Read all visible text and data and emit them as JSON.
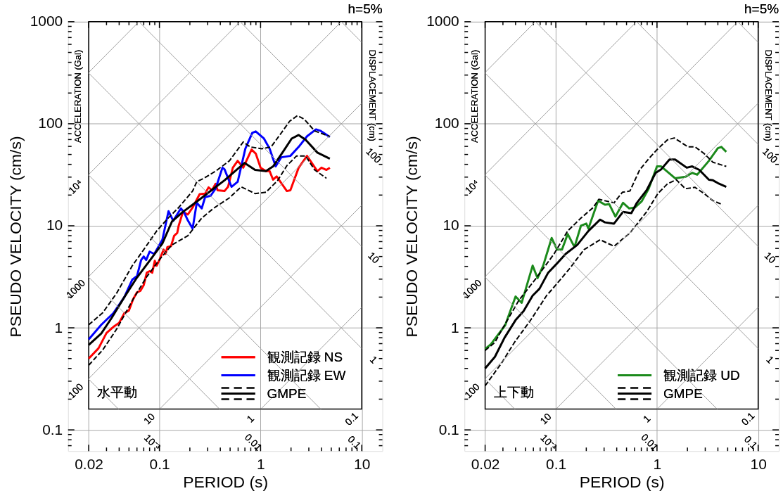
{
  "chart_data": [
    {
      "type": "line",
      "xlabel": "PERIOD (s)",
      "ylabel": "PSEUDO VELOCITY (cm/s)",
      "log": "xy",
      "grid": true,
      "legend": "bottom right",
      "xlim": [
        0.0125,
        16
      ],
      "ylim": [
        0.062,
        1000
      ],
      "xticks": [
        0.02,
        {
          "value": 0.03,
          "label": null
        },
        {
          "value": 0.04,
          "label": null
        },
        {
          "value": 0.05,
          "label": null
        },
        {
          "value": 0.06,
          "label": null
        },
        {
          "value": 0.07,
          "label": null
        },
        {
          "value": 0.08,
          "label": null
        },
        {
          "value": 0.09,
          "label": null
        },
        0.1,
        {
          "value": 0.2,
          "label": null
        },
        {
          "value": 0.3,
          "label": null
        },
        {
          "value": 0.4,
          "label": null
        },
        {
          "value": 0.5,
          "label": null
        },
        {
          "value": 0.6,
          "label": null
        },
        {
          "value": 0.7,
          "label": null
        },
        {
          "value": 0.8,
          "label": null
        },
        {
          "value": 0.9,
          "label": null
        },
        1,
        {
          "value": 2,
          "label": null
        },
        {
          "value": 3,
          "label": null
        },
        {
          "value": 4,
          "label": null
        },
        {
          "value": 5,
          "label": null
        },
        {
          "value": 6,
          "label": null
        },
        {
          "value": 7,
          "label": null
        },
        {
          "value": 8,
          "label": null
        },
        {
          "value": 9,
          "label": null
        },
        10
      ],
      "yticks": [
        {
          "value": 0.07,
          "label": null
        },
        {
          "value": 0.08,
          "label": null
        },
        {
          "value": 0.09,
          "label": null
        },
        0.1,
        {
          "value": 0.2,
          "label": null
        },
        {
          "value": 0.3,
          "label": null
        },
        {
          "value": 0.4,
          "label": null
        },
        {
          "value": 0.5,
          "label": null
        },
        {
          "value": 0.6,
          "label": null
        },
        {
          "value": 0.7,
          "label": null
        },
        {
          "value": 0.8,
          "label": null
        },
        {
          "value": 0.9,
          "label": null
        },
        1,
        {
          "value": 2,
          "label": null
        },
        {
          "value": 3,
          "label": null
        },
        {
          "value": 4,
          "label": null
        },
        {
          "value": 5,
          "label": null
        },
        {
          "value": 6,
          "label": null
        },
        {
          "value": 7,
          "label": null
        },
        {
          "value": 8,
          "label": null
        },
        {
          "value": 9,
          "label": null
        },
        10,
        {
          "value": 20,
          "label": null
        },
        {
          "value": 30,
          "label": null
        },
        {
          "value": 40,
          "label": null
        },
        {
          "value": 50,
          "label": null
        },
        {
          "value": 60,
          "label": null
        },
        {
          "value": 70,
          "label": null
        },
        {
          "value": 80,
          "label": null
        },
        {
          "value": 90,
          "label": null
        },
        100,
        {
          "value": 200,
          "label": null
        },
        {
          "value": 300,
          "label": null
        },
        {
          "value": 400,
          "label": null
        },
        {
          "value": 500,
          "label": null
        },
        {
          "value": 600,
          "label": null
        },
        {
          "value": 700,
          "label": null
        },
        {
          "value": 800,
          "label": null
        },
        {
          "value": 900,
          "label": null
        },
        1000
      ],
      "annotations": [
        "h=5%",
        "ACCELERATION (Gal)",
        "DISPLACEMENT (cm)",
        "水平動",
        "10⁴",
        "1000",
        "100",
        "10",
        "1",
        "0.1",
        "100",
        "10",
        "1",
        "10⁻³",
        "0.01",
        "0.1"
      ],
      "series": [
        {
          "name": "観測記録 NS",
          "color": "#ff0000",
          "x": [
            0.02,
            0.025,
            0.03,
            0.035,
            0.04,
            0.045,
            0.05,
            0.055,
            0.06,
            0.065,
            0.07,
            0.075,
            0.08,
            0.085,
            0.09,
            0.094,
            0.1,
            0.11,
            0.115,
            0.12,
            0.13,
            0.14,
            0.15,
            0.155,
            0.171,
            0.191,
            0.213,
            0.25,
            0.283,
            0.306,
            0.331,
            0.359,
            0.376,
            0.44,
            0.477,
            0.532,
            0.594,
            0.674,
            0.815,
            0.896,
            1.0,
            1.13,
            1.23,
            1.33,
            1.44,
            1.82,
            1.97,
            2.38,
            2.88,
            3.64,
            4.0,
            4.48,
            4.84
          ],
          "values": [
            0.5,
            0.63,
            0.89,
            1.02,
            1.12,
            1.39,
            1.48,
            1.91,
            2.23,
            2.31,
            2.62,
            3.47,
            3.59,
            3.47,
            4.54,
            4.07,
            4.62,
            5.84,
            5.3,
            6.2,
            6.3,
            8.0,
            8.5,
            10.0,
            13.7,
            12.9,
            15.1,
            20.4,
            20.7,
            23.8,
            22.3,
            25.8,
            22.3,
            21.9,
            24.1,
            37.1,
            43.3,
            37.1,
            55.8,
            51,
            37.1,
            34.3,
            34.3,
            28.3,
            30.5,
            21.9,
            22.3,
            37.1,
            48.4,
            34.3,
            37.1,
            35.3,
            37.1
          ]
        },
        {
          "name": "観測記録 EW",
          "color": "#0000ff",
          "x": [
            0.02,
            0.0266,
            0.035,
            0.045,
            0.054,
            0.06,
            0.066,
            0.07,
            0.074,
            0.08,
            0.089,
            0.107,
            0.123,
            0.137,
            0.163,
            0.177,
            0.191,
            0.213,
            0.234,
            0.262,
            0.283,
            0.321,
            0.359,
            0.42,
            0.44,
            0.516,
            0.594,
            0.707,
            0.828,
            0.896,
            1.08,
            1.23,
            1.41,
            1.6,
            1.97,
            2.38,
            2.88,
            3.53,
            3.94,
            4.84
          ],
          "values": [
            0.77,
            1.07,
            1.39,
            2.0,
            2.97,
            3.21,
            4.62,
            5.0,
            4.62,
            5.58,
            5.3,
            7.3,
            13.9,
            11.2,
            14.8,
            13.3,
            11.3,
            9.4,
            16.8,
            14.8,
            19.1,
            19.7,
            23.1,
            37.1,
            35.8,
            24.1,
            27,
            56.9,
            81.4,
            84.2,
            71.6,
            56.9,
            38.2,
            46.9,
            48.4,
            59.3,
            75.3,
            88.1,
            85,
            74.2
          ]
        },
        {
          "name": "GMPE",
          "color": "#000000",
          "x": [
            0.02,
            0.0266,
            0.0337,
            0.045,
            0.06,
            0.083,
            0.107,
            0.133,
            0.171,
            0.213,
            0.262,
            0.342,
            0.44,
            0.577,
            0.696,
            0.882,
            1.13,
            1.33,
            1.66,
            2.03,
            2.38,
            2.79,
            3.64,
            4.84
          ],
          "values": [
            0.68,
            0.88,
            1.25,
            2.0,
            3.11,
            4.77,
            6.7,
            11,
            13.7,
            16.1,
            18.8,
            23.1,
            27.9,
            35.3,
            41.3,
            35.3,
            34.3,
            38.2,
            52.8,
            71.6,
            77.6,
            69.6,
            52.2,
            45.5
          ]
        },
        {
          "color": "#000000",
          "line_style": "dashed",
          "x": [
            0.02,
            0.0276,
            0.0376,
            0.054,
            0.07,
            0.094,
            0.12,
            0.155,
            0.213,
            0.234,
            0.275,
            0.359,
            0.492,
            0.674,
            0.79,
            1.03,
            1.27,
            1.55,
            1.94,
            2.31,
            2.7,
            3.42,
            4.84
          ],
          "values": [
            1.07,
            1.41,
            2.17,
            4.07,
            5.84,
            8.9,
            11.7,
            15.1,
            21.9,
            27,
            29.2,
            34.3,
            43.3,
            66.3,
            59.3,
            56.9,
            59.3,
            77.6,
            106,
            120,
            111,
            85,
            75
          ]
        },
        {
          "color": "#000000",
          "line_style": "dashed",
          "x": [
            0.02,
            0.0276,
            0.038,
            0.054,
            0.074,
            0.102,
            0.133,
            0.191,
            0.262,
            0.342,
            0.492,
            0.643,
            0.882,
            1.13,
            1.48,
            1.82,
            2.27,
            2.79,
            3.42,
            4.48
          ],
          "values": [
            0.43,
            0.61,
            0.98,
            1.85,
            3.11,
            4.77,
            6.5,
            8.0,
            11.9,
            14.8,
            18.8,
            24.1,
            20.7,
            21.3,
            27.9,
            38.9,
            48.4,
            48.4,
            35.3,
            29.2
          ]
        },
        {
          "color": "#a0a0a0",
          "x": [
            1.005,
            10
          ],
          "values": [
            0.16,
            1.59
          ]
        },
        {
          "color": "#a0a0a0",
          "x": [
            0.1005,
            10
          ],
          "values": [
            0.16,
            15.9
          ]
        },
        {
          "color": "#a0a0a0",
          "x": [
            0.02,
            10
          ],
          "values": [
            0.318,
            159
          ]
        },
        {
          "color": "#a0a0a0",
          "x": [
            0.02,
            6.28
          ],
          "values": [
            3.18,
            1000
          ]
        },
        {
          "color": "#a0a0a0",
          "x": [
            0.02,
            0.628
          ],
          "values": [
            31.8,
            1000
          ]
        },
        {
          "color": "#a0a0a0",
          "x": [
            0.02,
            0.0628
          ],
          "values": [
            318,
            1000
          ]
        },
        {
          "color": "#a0a0a0",
          "x": [
            0.02,
            0.0393
          ],
          "values": [
            0.314,
            0.16
          ]
        },
        {
          "color": "#a0a0a0",
          "x": [
            0.02,
            0.393
          ],
          "values": [
            3.14,
            0.16
          ]
        },
        {
          "color": "#a0a0a0",
          "x": [
            0.02,
            3.93
          ],
          "values": [
            31.4,
            0.16
          ]
        },
        {
          "color": "#a0a0a0",
          "x": [
            0.02,
            10
          ],
          "values": [
            314,
            0.628
          ]
        },
        {
          "color": "#a0a0a0",
          "x": [
            0.0628,
            10
          ],
          "values": [
            1000,
            6.28
          ]
        },
        {
          "color": "#a0a0a0",
          "x": [
            0.628,
            10
          ],
          "values": [
            1000,
            62.8
          ]
        },
        {
          "color": "#a0a0a0",
          "x": [
            6.28,
            10
          ],
          "values": [
            1000,
            628
          ]
        }
      ]
    },
    {
      "type": "line",
      "xlabel": "PERIOD (s)",
      "ylabel": "PSEUDO VELOCITY (cm/s)",
      "log": "xy",
      "grid": true,
      "legend": "bottom right",
      "xlim": [
        0.0125,
        16
      ],
      "ylim": [
        0.062,
        1000
      ],
      "xticks": [
        0.02,
        {
          "value": 0.03,
          "label": null
        },
        {
          "value": 0.04,
          "label": null
        },
        {
          "value": 0.05,
          "label": null
        },
        {
          "value": 0.06,
          "label": null
        },
        {
          "value": 0.07,
          "label": null
        },
        {
          "value": 0.08,
          "label": null
        },
        {
          "value": 0.09,
          "label": null
        },
        0.1,
        {
          "value": 0.2,
          "label": null
        },
        {
          "value": 0.3,
          "label": null
        },
        {
          "value": 0.4,
          "label": null
        },
        {
          "value": 0.5,
          "label": null
        },
        {
          "value": 0.6,
          "label": null
        },
        {
          "value": 0.7,
          "label": null
        },
        {
          "value": 0.8,
          "label": null
        },
        {
          "value": 0.9,
          "label": null
        },
        1,
        {
          "value": 2,
          "label": null
        },
        {
          "value": 3,
          "label": null
        },
        {
          "value": 4,
          "label": null
        },
        {
          "value": 5,
          "label": null
        },
        {
          "value": 6,
          "label": null
        },
        {
          "value": 7,
          "label": null
        },
        {
          "value": 8,
          "label": null
        },
        {
          "value": 9,
          "label": null
        },
        10
      ],
      "yticks": [
        {
          "value": 0.07,
          "label": null
        },
        {
          "value": 0.08,
          "label": null
        },
        {
          "value": 0.09,
          "label": null
        },
        0.1,
        {
          "value": 0.2,
          "label": null
        },
        {
          "value": 0.3,
          "label": null
        },
        {
          "value": 0.4,
          "label": null
        },
        {
          "value": 0.5,
          "label": null
        },
        {
          "value": 0.6,
          "label": null
        },
        {
          "value": 0.7,
          "label": null
        },
        {
          "value": 0.8,
          "label": null
        },
        {
          "value": 0.9,
          "label": null
        },
        1,
        {
          "value": 2,
          "label": null
        },
        {
          "value": 3,
          "label": null
        },
        {
          "value": 4,
          "label": null
        },
        {
          "value": 5,
          "label": null
        },
        {
          "value": 6,
          "label": null
        },
        {
          "value": 7,
          "label": null
        },
        {
          "value": 8,
          "label": null
        },
        {
          "value": 9,
          "label": null
        },
        10,
        {
          "value": 20,
          "label": null
        },
        {
          "value": 30,
          "label": null
        },
        {
          "value": 40,
          "label": null
        },
        {
          "value": 50,
          "label": null
        },
        {
          "value": 60,
          "label": null
        },
        {
          "value": 70,
          "label": null
        },
        {
          "value": 80,
          "label": null
        },
        {
          "value": 90,
          "label": null
        },
        100,
        {
          "value": 200,
          "label": null
        },
        {
          "value": 300,
          "label": null
        },
        {
          "value": 400,
          "label": null
        },
        {
          "value": 500,
          "label": null
        },
        {
          "value": 600,
          "label": null
        },
        {
          "value": 700,
          "label": null
        },
        {
          "value": 800,
          "label": null
        },
        {
          "value": 900,
          "label": null
        },
        1000
      ],
      "annotations": [
        "h=5%",
        "ACCELERATION (Gal)",
        "DISPLACEMENT (cm)",
        "上下動",
        "10⁴",
        "1000",
        "100",
        "10",
        "1",
        "0.1",
        "100",
        "10",
        "1",
        "10⁻³",
        "0.01",
        "0.1"
      ],
      "series": [
        {
          "name": "観測記録 UD",
          "color": "#1b8a1b",
          "x": [
            0.02,
            0.0228,
            0.0265,
            0.0316,
            0.035,
            0.04,
            0.046,
            0.059,
            0.066,
            0.075,
            0.091,
            0.103,
            0.115,
            0.131,
            0.153,
            0.177,
            0.2,
            0.21,
            0.262,
            0.306,
            0.337,
            0.388,
            0.462,
            0.532,
            0.604,
            0.707,
            0.828,
            1.0,
            1.1,
            1.51,
            1.91,
            2.23,
            2.5,
            3.26,
            4.0,
            4.33,
            4.84
          ],
          "values": [
            0.62,
            0.69,
            0.84,
            1.06,
            1.41,
            2.03,
            1.76,
            4.07,
            3.07,
            4.07,
            7.6,
            5.84,
            5.84,
            8.3,
            6.2,
            10.0,
            10.5,
            9.4,
            17.6,
            16.1,
            16.3,
            12.3,
            16.8,
            14.8,
            15.1,
            17.4,
            23.1,
            38.2,
            38.2,
            29.2,
            30.2,
            33.0,
            31.7,
            43.3,
            57.7,
            59.3,
            53
          ]
        },
        {
          "name": "GMPE",
          "color": "#000000",
          "x": [
            0.02,
            0.025,
            0.0311,
            0.04,
            0.048,
            0.059,
            0.069,
            0.084,
            0.101,
            0.125,
            0.163,
            0.21,
            0.274,
            0.306,
            0.376,
            0.462,
            0.558,
            0.633,
            0.79,
            0.969,
            1.1,
            1.33,
            1.51,
            1.97,
            2.23,
            2.62,
            3.26,
            3.58,
            4.0,
            4.84
          ],
          "values": [
            0.4,
            0.52,
            0.8,
            1.19,
            1.46,
            2.07,
            2.42,
            3.47,
            4.2,
            5.3,
            6.5,
            8.9,
            11.5,
            10.8,
            10.5,
            13.7,
            13.3,
            16.8,
            22.3,
            33,
            35.8,
            44.6,
            44.6,
            37.1,
            38.2,
            35.3,
            28.3,
            27.9,
            26.2,
            24.1
          ]
        },
        {
          "color": "#000000",
          "line_style": "dashed",
          "x": [
            0.02,
            0.025,
            0.03,
            0.043,
            0.064,
            0.096,
            0.131,
            0.177,
            0.234,
            0.266,
            0.306,
            0.376,
            0.455,
            0.54,
            0.674,
            0.83,
            1.02,
            1.27,
            1.48,
            2.03,
            2.38,
            2.92,
            3.58,
            4.84
          ],
          "values": [
            0.6,
            0.72,
            1.0,
            1.85,
            3.07,
            5.3,
            8.9,
            11.9,
            15.1,
            18.2,
            17.6,
            16.8,
            21.3,
            21.9,
            35.3,
            45.5,
            56.9,
            69.6,
            72.6,
            59.3,
            59.3,
            51.1,
            41.9,
            38.2
          ]
        },
        {
          "color": "#000000",
          "line_style": "dashed",
          "x": [
            0.02,
            0.029,
            0.039,
            0.057,
            0.081,
            0.101,
            0.139,
            0.19,
            0.274,
            0.376,
            0.54,
            0.6,
            0.79,
            1.02,
            1.27,
            1.55,
            1.91,
            2.38,
            2.92,
            3.58,
            4.47
          ],
          "values": [
            0.27,
            0.45,
            0.72,
            1.21,
            2.07,
            2.66,
            3.88,
            5.84,
            7.3,
            6.3,
            8.5,
            9.7,
            13.7,
            20.7,
            25.8,
            28.3,
            23.1,
            23.8,
            20.7,
            17.6,
            16.1
          ]
        },
        {
          "color": "#a0a0a0",
          "x": [
            1.005,
            10
          ],
          "values": [
            0.16,
            1.59
          ]
        },
        {
          "color": "#a0a0a0",
          "x": [
            0.1005,
            10
          ],
          "values": [
            0.16,
            15.9
          ]
        },
        {
          "color": "#a0a0a0",
          "x": [
            0.02,
            10
          ],
          "values": [
            0.318,
            159
          ]
        },
        {
          "color": "#a0a0a0",
          "x": [
            0.02,
            6.28
          ],
          "values": [
            3.18,
            1000
          ]
        },
        {
          "color": "#a0a0a0",
          "x": [
            0.02,
            0.628
          ],
          "values": [
            31.8,
            1000
          ]
        },
        {
          "color": "#a0a0a0",
          "x": [
            0.02,
            0.0628
          ],
          "values": [
            318,
            1000
          ]
        },
        {
          "color": "#a0a0a0",
          "x": [
            0.02,
            0.0393
          ],
          "values": [
            0.314,
            0.16
          ]
        },
        {
          "color": "#a0a0a0",
          "x": [
            0.02,
            0.393
          ],
          "values": [
            3.14,
            0.16
          ]
        },
        {
          "color": "#a0a0a0",
          "x": [
            0.02,
            3.93
          ],
          "values": [
            31.4,
            0.16
          ]
        },
        {
          "color": "#a0a0a0",
          "x": [
            0.02,
            10
          ],
          "values": [
            314,
            0.628
          ]
        },
        {
          "color": "#a0a0a0",
          "x": [
            0.0628,
            10
          ],
          "values": [
            1000,
            6.28
          ]
        },
        {
          "color": "#a0a0a0",
          "x": [
            0.628,
            10
          ],
          "values": [
            1000,
            62.8
          ]
        },
        {
          "color": "#a0a0a0",
          "x": [
            6.28,
            10
          ],
          "values": [
            1000,
            628
          ]
        }
      ]
    }
  ]
}
